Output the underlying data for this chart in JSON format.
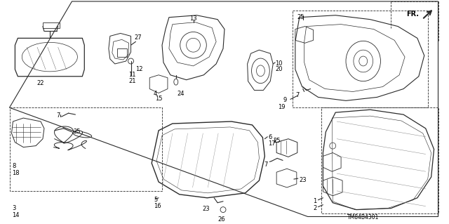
{
  "background_color": "#ffffff",
  "line_color": "#2a2a2a",
  "figsize": [
    6.4,
    3.19
  ],
  "dpi": 100,
  "part_number": "TM84B4301",
  "gray": "#888888",
  "lightgray": "#bbbbbb"
}
